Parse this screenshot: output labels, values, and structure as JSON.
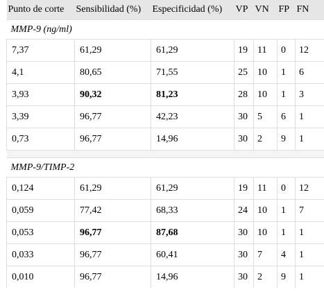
{
  "columns": [
    "Punto de corte",
    "Sensibilidad (%)",
    "Especificidad (%)",
    "VP",
    "VN",
    "FP",
    "FN"
  ],
  "sections": [
    {
      "title": "MMP-9 (ng/ml)",
      "rows": [
        {
          "cut": "7,37",
          "sens": "61,29",
          "spec": "61,29",
          "vp": "19",
          "vn": "11",
          "fp": "0",
          "fn": "12",
          "bold": false
        },
        {
          "cut": "4,1",
          "sens": "80,65",
          "spec": "71,55",
          "vp": "25",
          "vn": "10",
          "fp": "1",
          "fn": "6",
          "bold": false
        },
        {
          "cut": "3,93",
          "sens": "90,32",
          "spec": "81,23",
          "vp": "28",
          "vn": "10",
          "fp": "1",
          "fn": "3",
          "bold": true
        },
        {
          "cut": "3,39",
          "sens": "96,77",
          "spec": "42,23",
          "vp": "30",
          "vn": "5",
          "fp": "6",
          "fn": "1",
          "bold": false
        },
        {
          "cut": "0,73",
          "sens": "96,77",
          "spec": "14,96",
          "vp": "30",
          "vn": "2",
          "fp": "9",
          "fn": "1",
          "bold": false
        }
      ]
    },
    {
      "title": "MMP-9/TIMP-2",
      "rows": [
        {
          "cut": "0,124",
          "sens": "61,29",
          "spec": "61,29",
          "vp": "19",
          "vn": "11",
          "fp": "0",
          "fn": "12",
          "bold": false
        },
        {
          "cut": "0,059",
          "sens": "77,42",
          "spec": "68,33",
          "vp": "24",
          "vn": "10",
          "fp": "1",
          "fn": "7",
          "bold": false
        },
        {
          "cut": "0,053",
          "sens": "96,77",
          "spec": "87,68",
          "vp": "30",
          "vn": "10",
          "fp": "1",
          "fn": "1",
          "bold": true
        },
        {
          "cut": "0,033",
          "sens": "96,77",
          "spec": "60,41",
          "vp": "30",
          "vn": "7",
          "fp": "4",
          "fn": "1",
          "bold": false
        },
        {
          "cut": "0,010",
          "sens": "96,77",
          "spec": "14,96",
          "vp": "30",
          "vn": "2",
          "fp": "9",
          "fn": "1",
          "bold": false
        }
      ]
    }
  ]
}
